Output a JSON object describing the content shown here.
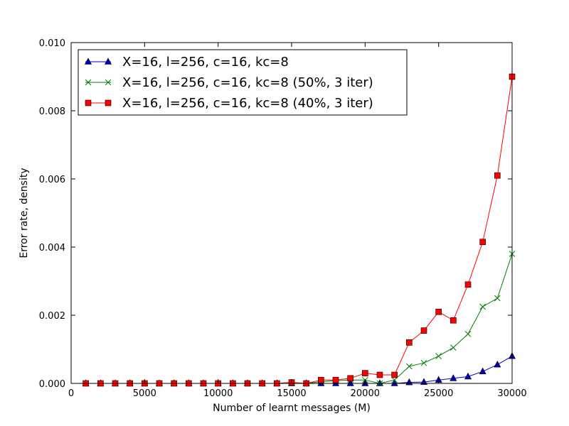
{
  "chart_data": {
    "type": "line",
    "xlabel": "Number of learnt messages (M)",
    "ylabel": "Error rate, density",
    "xlim": [
      0,
      30000
    ],
    "ylim": [
      0,
      0.01
    ],
    "xticks": [
      0,
      5000,
      10000,
      15000,
      20000,
      25000,
      30000
    ],
    "xtick_labels": [
      "0",
      "5000",
      "10000",
      "15000",
      "20000",
      "25000",
      "30000"
    ],
    "yticks": [
      0,
      0.002,
      0.004,
      0.006,
      0.008,
      0.01
    ],
    "ytick_labels": [
      "0.000",
      "0.002",
      "0.004",
      "0.006",
      "0.008",
      "0.010"
    ],
    "grid": false,
    "legend_position": "top-left",
    "x": [
      1000,
      2000,
      3000,
      4000,
      5000,
      6000,
      7000,
      8000,
      9000,
      10000,
      11000,
      12000,
      13000,
      14000,
      15000,
      16000,
      17000,
      18000,
      19000,
      20000,
      21000,
      22000,
      23000,
      24000,
      25000,
      26000,
      27000,
      28000,
      29000,
      30000
    ],
    "series": [
      {
        "name": "X=16, l=256, c=16, kc=8",
        "color": "#0000bf",
        "marker": "triangle",
        "values": [
          0,
          0,
          0,
          0,
          0,
          0,
          0,
          0,
          0,
          0,
          0,
          0,
          0,
          0,
          0,
          0,
          0,
          0,
          0,
          0,
          0,
          0,
          3e-05,
          4e-05,
          0.0001,
          0.00015,
          0.0002,
          0.00035,
          0.00055,
          0.0008
        ]
      },
      {
        "name": "X=16, l=256, c=16, kc=8 (50%, 3 iter)",
        "color": "#008000",
        "marker": "x",
        "values": [
          0,
          0,
          0,
          0,
          0,
          0,
          0,
          0,
          0,
          0,
          0,
          0,
          0,
          0,
          0,
          0,
          5e-05,
          8e-05,
          0.0001,
          0.0001,
          0,
          0.0001,
          0.0005,
          0.0006,
          0.0008,
          0.00105,
          0.00145,
          0.00225,
          0.0025,
          0.0038
        ]
      },
      {
        "name": "X=16, l=256, c=16, kc=8 (40%, 3 iter)",
        "color": "#ff0000",
        "marker": "square",
        "values": [
          0,
          0,
          0,
          0,
          0,
          0,
          0,
          0,
          0,
          0,
          0,
          0,
          0,
          0,
          3e-05,
          0,
          0.0001,
          0.0001,
          0.00015,
          0.0003,
          0.00025,
          0.00025,
          0.0012,
          0.00155,
          0.0021,
          0.00185,
          0.0029,
          0.00415,
          0.0061,
          0.009
        ]
      }
    ]
  }
}
